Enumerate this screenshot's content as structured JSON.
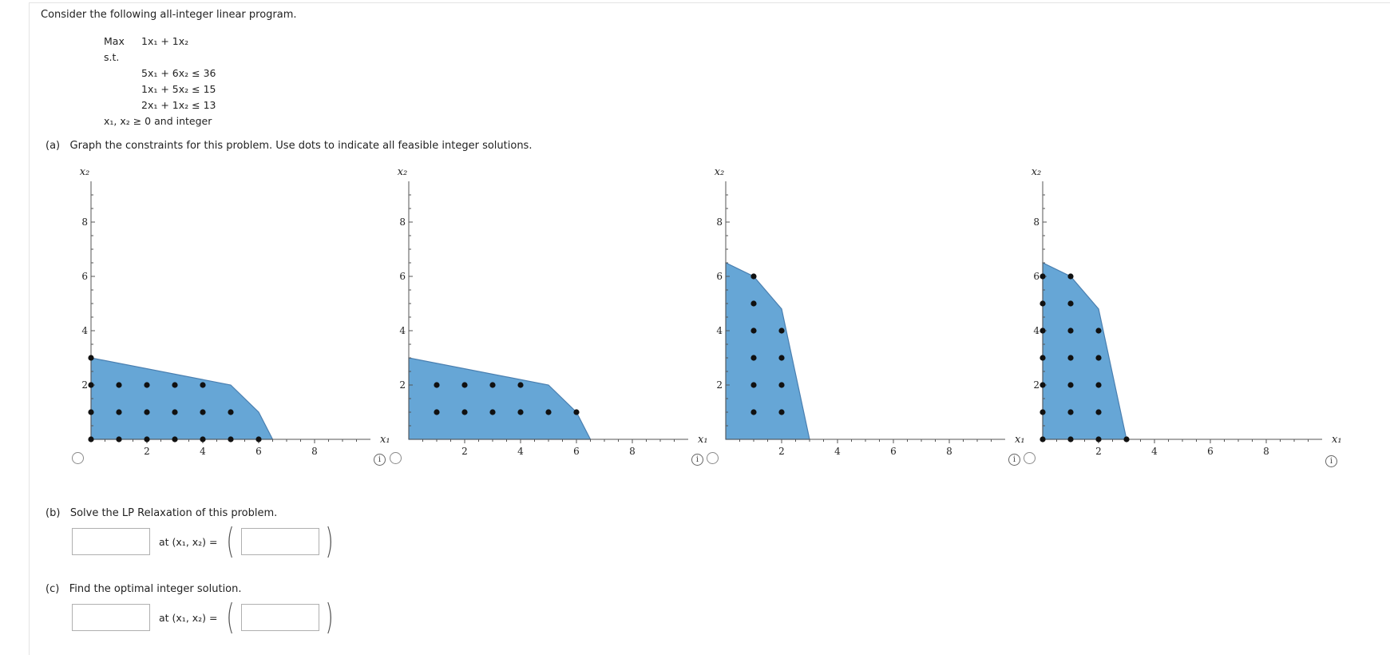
{
  "intro": "Consider the following all-integer linear program.",
  "lp": {
    "max_label": "Max",
    "objective": "1x₁ + 1x₂",
    "st_label": "s.t.",
    "constraints": [
      "5x₁ + 6x₂ ≤ 36",
      "1x₁ + 5x₂ ≤ 15",
      "2x₁ + 1x₂ ≤ 13"
    ],
    "nonneg": "x₁, x₂ ≥ 0 and integer"
  },
  "part_a": {
    "label": "(a)",
    "text": "Graph the constraints for this problem. Use dots to indicate all feasible integer solutions."
  },
  "part_b": {
    "label": "(b)",
    "text": "Solve the LP Relaxation of this problem.",
    "at_text": "at (x₁, x₂) =",
    "value_input": "",
    "point_input": ""
  },
  "part_c": {
    "label": "(c)",
    "text": "Find the optimal integer solution.",
    "at_text": "at (x₁, x₂) =",
    "value_input": "",
    "point_input": ""
  },
  "colors": {
    "region_fill": "#66a6d6",
    "region_stroke": "#4a7fb0",
    "dot": "#111111",
    "axis": "#555555"
  },
  "chart_data": [
    {
      "type": "scatter",
      "option": 1,
      "xlabel": "x₁",
      "ylabel": "x₂",
      "xlim": [
        0,
        10
      ],
      "ylim": [
        0,
        9.5
      ],
      "x_ticks": [
        2,
        4,
        6,
        8
      ],
      "y_ticks": [
        2,
        4,
        6,
        8
      ],
      "region": [
        [
          0,
          0
        ],
        [
          0,
          3
        ],
        [
          5,
          2
        ],
        [
          6,
          1
        ],
        [
          6.5,
          0
        ]
      ],
      "points": [
        [
          0,
          0
        ],
        [
          1,
          0
        ],
        [
          2,
          0
        ],
        [
          3,
          0
        ],
        [
          4,
          0
        ],
        [
          5,
          0
        ],
        [
          6,
          0
        ],
        [
          0,
          1
        ],
        [
          1,
          1
        ],
        [
          2,
          1
        ],
        [
          3,
          1
        ],
        [
          4,
          1
        ],
        [
          5,
          1
        ],
        [
          0,
          2
        ],
        [
          1,
          2
        ],
        [
          2,
          2
        ],
        [
          3,
          2
        ],
        [
          4,
          2
        ],
        [
          0,
          3
        ]
      ]
    },
    {
      "type": "scatter",
      "option": 2,
      "xlabel": "x₁",
      "ylabel": "x₂",
      "xlim": [
        0,
        10
      ],
      "ylim": [
        0,
        9.5
      ],
      "x_ticks": [
        2,
        4,
        6,
        8
      ],
      "y_ticks": [
        2,
        4,
        6,
        8
      ],
      "region": [
        [
          0,
          0
        ],
        [
          0,
          3
        ],
        [
          5,
          2
        ],
        [
          6,
          1
        ],
        [
          6.5,
          0
        ]
      ],
      "points": [
        [
          1,
          1
        ],
        [
          2,
          1
        ],
        [
          3,
          1
        ],
        [
          4,
          1
        ],
        [
          5,
          1
        ],
        [
          6,
          1
        ],
        [
          1,
          2
        ],
        [
          2,
          2
        ],
        [
          3,
          2
        ],
        [
          4,
          2
        ]
      ]
    },
    {
      "type": "scatter",
      "option": 3,
      "xlabel": "x₁",
      "ylabel": "x₂",
      "xlim": [
        0,
        10
      ],
      "ylim": [
        0,
        9.5
      ],
      "x_ticks": [
        2,
        4,
        6,
        8
      ],
      "y_ticks": [
        2,
        4,
        6,
        8
      ],
      "region": [
        [
          0,
          0
        ],
        [
          0,
          6.5
        ],
        [
          1,
          6
        ],
        [
          2,
          4.8
        ],
        [
          3,
          0
        ]
      ],
      "points": [
        [
          1,
          1
        ],
        [
          2,
          1
        ],
        [
          1,
          2
        ],
        [
          2,
          2
        ],
        [
          1,
          3
        ],
        [
          2,
          3
        ],
        [
          1,
          4
        ],
        [
          2,
          4
        ],
        [
          1,
          5
        ],
        [
          1,
          6
        ]
      ]
    },
    {
      "type": "scatter",
      "option": 4,
      "xlabel": "x₁",
      "ylabel": "x₂",
      "xlim": [
        0,
        10
      ],
      "ylim": [
        0,
        9.5
      ],
      "x_ticks": [
        2,
        4,
        6,
        8
      ],
      "y_ticks": [
        2,
        4,
        6,
        8
      ],
      "region": [
        [
          0,
          0
        ],
        [
          0,
          6.5
        ],
        [
          1,
          6
        ],
        [
          2,
          4.8
        ],
        [
          3,
          0
        ]
      ],
      "points": [
        [
          0,
          0
        ],
        [
          1,
          0
        ],
        [
          2,
          0
        ],
        [
          3,
          0
        ],
        [
          0,
          1
        ],
        [
          1,
          1
        ],
        [
          2,
          1
        ],
        [
          0,
          2
        ],
        [
          1,
          2
        ],
        [
          2,
          2
        ],
        [
          0,
          3
        ],
        [
          1,
          3
        ],
        [
          2,
          3
        ],
        [
          0,
          4
        ],
        [
          1,
          4
        ],
        [
          2,
          4
        ],
        [
          0,
          5
        ],
        [
          1,
          5
        ],
        [
          0,
          6
        ],
        [
          1,
          6
        ]
      ]
    }
  ]
}
